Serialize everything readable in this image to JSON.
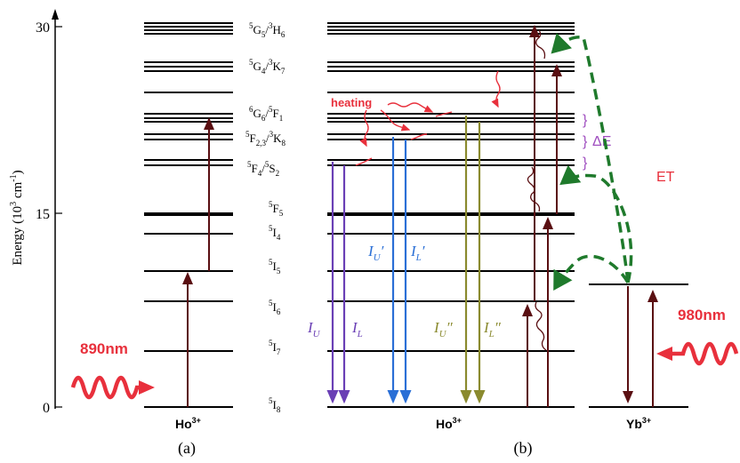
{
  "axis": {
    "title_main": "Energy (10",
    "title_exp1": "3",
    "title_mid": " cm",
    "title_exp2": "-1",
    "title_end": ")",
    "ticks": [
      "30",
      "15",
      "0"
    ]
  },
  "level_labels": [
    {
      "sup1": "5",
      "a": "G",
      "sub1": "5",
      "slash": "/",
      "sup2": "3",
      "b": "H",
      "sub2": "6"
    },
    {
      "sup1": "5",
      "a": "G",
      "sub1": "4",
      "slash": "/",
      "sup2": "3",
      "b": "K",
      "sub2": "7"
    },
    {
      "sup1": "6",
      "a": "G",
      "sub1": "6",
      "slash": "/",
      "sup2": "5",
      "b": "F",
      "sub2": "1"
    },
    {
      "sup1": "5",
      "a": "F",
      "sub1": "2,3",
      "slash": "/",
      "sup2": "3",
      "b": "K",
      "sub2": "8"
    },
    {
      "sup1": "5",
      "a": "F",
      "sub1": "4",
      "slash": "/",
      "sup2": "5",
      "b": "S",
      "sub2": "2"
    },
    {
      "sup1": "5",
      "a": "F",
      "sub1": "5"
    },
    {
      "sup1": "5",
      "a": "I",
      "sub1": "4"
    },
    {
      "sup1": "5",
      "a": "I",
      "sub1": "5"
    },
    {
      "sup1": "5",
      "a": "I",
      "sub1": "6"
    },
    {
      "sup1": "5",
      "a": "I",
      "sub1": "7"
    },
    {
      "sup1": "5",
      "a": "I",
      "sub1": "8"
    }
  ],
  "ions": {
    "a": "Ho",
    "a_charge": "3+",
    "b": "Ho",
    "b_charge": "3+",
    "yb": "Yb",
    "yb_charge": "3+"
  },
  "panels": {
    "a": "(a)",
    "b": "(b)"
  },
  "pumps": {
    "left": "890nm",
    "right": "980nm"
  },
  "annotations": {
    "heating": "heating",
    "delta_e": "ΔE",
    "et": "ET"
  },
  "transitions": {
    "iu": {
      "base": "I",
      "sub": "U",
      "prime": ""
    },
    "il": {
      "base": "I",
      "sub": "L",
      "prime": ""
    },
    "iu1": {
      "base": "I",
      "sub": "U",
      "prime": "′"
    },
    "il1": {
      "base": "I",
      "sub": "L",
      "prime": "′"
    },
    "iu2": {
      "base": "I",
      "sub": "U",
      "prime": "″"
    },
    "il2": {
      "base": "I",
      "sub": "L",
      "prime": "″"
    }
  },
  "colors": {
    "level": "#000000",
    "pump_red": "#e8303c",
    "absorption": "#5a0f12",
    "violet": "#6a3fb5",
    "blue": "#2a6fd6",
    "olive": "#8a8a2e",
    "et_green": "#1f7a2c",
    "delta_purple": "#a04fc0"
  }
}
